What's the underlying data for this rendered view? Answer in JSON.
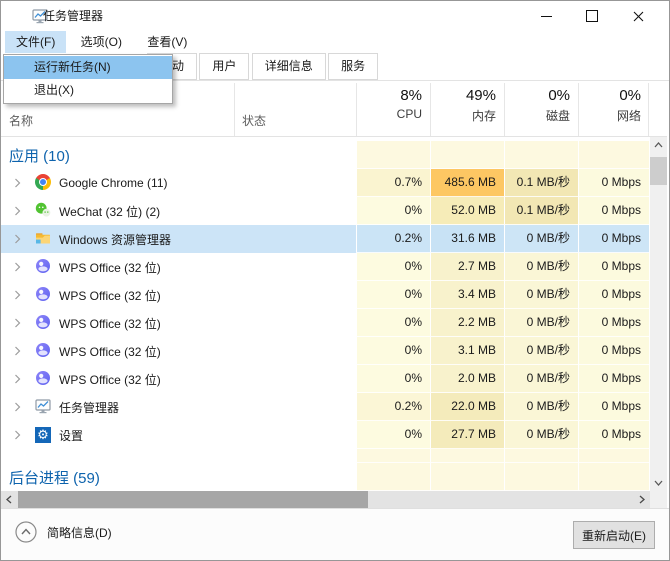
{
  "window": {
    "title": "任务管理器"
  },
  "menubar": {
    "items": [
      {
        "label": "文件(F)",
        "active": true
      },
      {
        "label": "选项(O)",
        "active": false
      },
      {
        "label": "查看(V)",
        "active": false
      }
    ]
  },
  "file_menu": {
    "items": [
      {
        "label": "运行新任务(N)",
        "highlighted": true
      },
      {
        "label": "退出(X)",
        "highlighted": false
      }
    ]
  },
  "tabs": [
    "启动",
    "用户",
    "详细信息",
    "服务"
  ],
  "table": {
    "name_header": "名称",
    "status_header": "状态",
    "usage_columns": [
      {
        "percent": "8%",
        "label": "CPU"
      },
      {
        "percent": "49%",
        "label": "内存"
      },
      {
        "percent": "0%",
        "label": "磁盘"
      },
      {
        "percent": "0%",
        "label": "网络"
      }
    ],
    "rows": [
      {
        "type": "group",
        "name": "应用 (10)",
        "colors": [
          "#fdf9e0",
          "#fdf9e0",
          "#fdf9e0",
          "#fdf9e0"
        ]
      },
      {
        "type": "app",
        "icon": "chrome",
        "name": "Google Chrome (11)",
        "values": [
          "0.7%",
          "485.6 MB",
          "0.1 MB/秒",
          "0 Mbps"
        ],
        "colors": [
          "#faf4d0",
          "#fdc763",
          "#f2e7b4",
          "#fcfade"
        ],
        "selected": false
      },
      {
        "type": "app",
        "icon": "wechat",
        "name": "WeChat (32 位) (2)",
        "values": [
          "0%",
          "52.0 MB",
          "0.1 MB/秒",
          "0 Mbps"
        ],
        "colors": [
          "#fdfbe0",
          "#f6ecb8",
          "#f2e7b4",
          "#fcfade"
        ],
        "selected": false
      },
      {
        "type": "app",
        "icon": "explorer",
        "name": "Windows 资源管理器",
        "values": [
          "0.2%",
          "31.6 MB",
          "0 MB/秒",
          "0 Mbps"
        ],
        "colors": [
          "#cbe4f6",
          "#c8e2f5",
          "#cde5f6",
          "#cde5f6"
        ],
        "selected": true
      },
      {
        "type": "app",
        "icon": "wps",
        "name": "WPS Office (32 位)",
        "values": [
          "0%",
          "2.7 MB",
          "0 MB/秒",
          "0 Mbps"
        ],
        "colors": [
          "#fdfbe0",
          "#f8f2cc",
          "#faf6d6",
          "#fcfade"
        ],
        "selected": false
      },
      {
        "type": "app",
        "icon": "wps",
        "name": "WPS Office (32 位)",
        "values": [
          "0%",
          "3.4 MB",
          "0 MB/秒",
          "0 Mbps"
        ],
        "colors": [
          "#fdfbe0",
          "#f8f2cc",
          "#faf6d6",
          "#fcfade"
        ],
        "selected": false
      },
      {
        "type": "app",
        "icon": "wps",
        "name": "WPS Office (32 位)",
        "values": [
          "0%",
          "2.2 MB",
          "0 MB/秒",
          "0 Mbps"
        ],
        "colors": [
          "#fdfbe0",
          "#f8f2cc",
          "#faf6d6",
          "#fcfade"
        ],
        "selected": false
      },
      {
        "type": "app",
        "icon": "wps",
        "name": "WPS Office (32 位)",
        "values": [
          "0%",
          "3.1 MB",
          "0 MB/秒",
          "0 Mbps"
        ],
        "colors": [
          "#fdfbe0",
          "#f8f2cc",
          "#faf6d6",
          "#fcfade"
        ],
        "selected": false
      },
      {
        "type": "app",
        "icon": "wps",
        "name": "WPS Office (32 位)",
        "values": [
          "0%",
          "2.0 MB",
          "0 MB/秒",
          "0 Mbps"
        ],
        "colors": [
          "#fdfbe0",
          "#f8f2cc",
          "#faf6d6",
          "#fcfade"
        ],
        "selected": false
      },
      {
        "type": "app",
        "icon": "taskmgr",
        "name": "任务管理器",
        "values": [
          "0.2%",
          "22.0 MB",
          "0 MB/秒",
          "0 Mbps"
        ],
        "colors": [
          "#fbf6d6",
          "#f4ebbb",
          "#faf6d6",
          "#fcfade"
        ],
        "selected": false
      },
      {
        "type": "app",
        "icon": "settings",
        "name": "设置",
        "values": [
          "0%",
          "27.7 MB",
          "0 MB/秒",
          "0 Mbps"
        ],
        "colors": [
          "#fdfbe0",
          "#f4ebbb",
          "#faf6d6",
          "#fcfade"
        ],
        "selected": false
      },
      {
        "type": "spacer",
        "colors": [
          "#fdf9e0",
          "#fdf9e0",
          "#fdf9e0",
          "#fdf9e0"
        ]
      },
      {
        "type": "group",
        "name": "后台进程 (59)",
        "colors": [
          "#fdf9e0",
          "#fdf9e0",
          "#fdf9e0",
          "#fdf9e0"
        ]
      }
    ]
  },
  "footer": {
    "summary_label": "简略信息(D)",
    "restart_label": "重新启动(E)"
  },
  "colors": {
    "selection_blue": "#cce4f7",
    "menu_highlight": "#8cc4ef",
    "group_text_blue": "#0d63ad",
    "heat_strong": "#fdc763"
  }
}
